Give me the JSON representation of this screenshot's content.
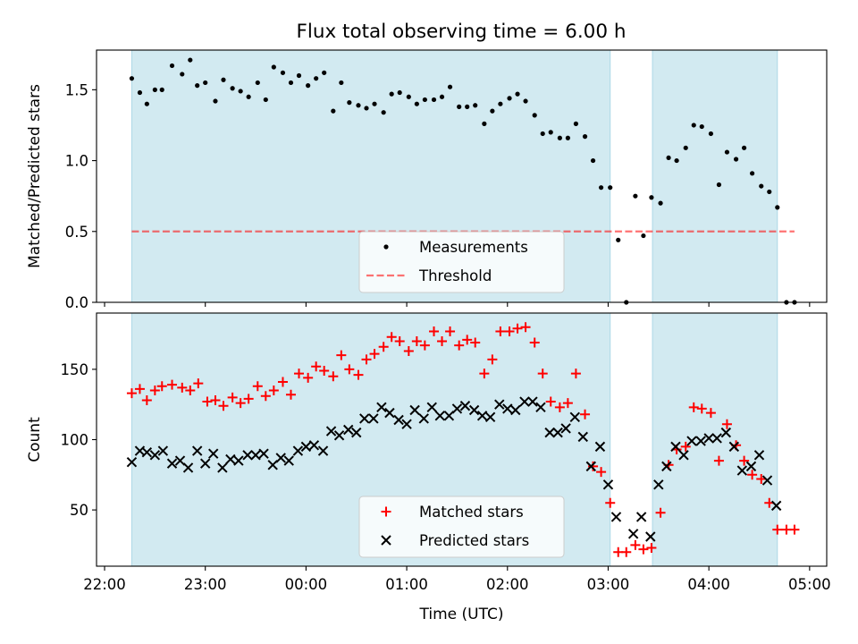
{
  "title": "Flux total observing time = 6.00 h",
  "colors": {
    "observing_span": "#add8e6",
    "measurements": "#000000",
    "threshold": "#ff0000",
    "matched": "#ff0000",
    "predicted": "#000000"
  },
  "chart_data": [
    {
      "type": "scatter",
      "panel": "top",
      "ylabel": "Matched/Predicted stars",
      "xlabel": "",
      "x_unit": "hours since 22:00 UTC",
      "xlim": [
        -0.08,
        7.17
      ],
      "ylim": [
        0.0,
        1.78
      ],
      "yticks": [
        0.0,
        0.5,
        1.0,
        1.5
      ],
      "ytick_labels": [
        "0.0",
        "0.5",
        "1.0",
        "1.5"
      ],
      "observing_spans": [
        [
          0.27,
          5.02
        ],
        [
          5.44,
          6.68
        ]
      ],
      "legend_position": "lower center",
      "series": [
        {
          "name": "Measurements",
          "points": [
            [
              0.27,
              1.58
            ],
            [
              0.35,
              1.48
            ],
            [
              0.42,
              1.4
            ],
            [
              0.5,
              1.5
            ],
            [
              0.57,
              1.5
            ],
            [
              0.67,
              1.67
            ],
            [
              0.77,
              1.61
            ],
            [
              0.85,
              1.71
            ],
            [
              0.92,
              1.53
            ],
            [
              1.0,
              1.55
            ],
            [
              1.1,
              1.42
            ],
            [
              1.18,
              1.57
            ],
            [
              1.27,
              1.51
            ],
            [
              1.35,
              1.49
            ],
            [
              1.43,
              1.45
            ],
            [
              1.52,
              1.55
            ],
            [
              1.6,
              1.43
            ],
            [
              1.68,
              1.66
            ],
            [
              1.77,
              1.62
            ],
            [
              1.85,
              1.55
            ],
            [
              1.93,
              1.6
            ],
            [
              2.02,
              1.53
            ],
            [
              2.1,
              1.58
            ],
            [
              2.18,
              1.62
            ],
            [
              2.27,
              1.35
            ],
            [
              2.35,
              1.55
            ],
            [
              2.43,
              1.41
            ],
            [
              2.52,
              1.39
            ],
            [
              2.6,
              1.37
            ],
            [
              2.68,
              1.4
            ],
            [
              2.77,
              1.34
            ],
            [
              2.85,
              1.47
            ],
            [
              2.93,
              1.48
            ],
            [
              3.02,
              1.45
            ],
            [
              3.1,
              1.4
            ],
            [
              3.18,
              1.43
            ],
            [
              3.27,
              1.43
            ],
            [
              3.35,
              1.45
            ],
            [
              3.43,
              1.52
            ],
            [
              3.52,
              1.38
            ],
            [
              3.6,
              1.38
            ],
            [
              3.68,
              1.39
            ],
            [
              3.77,
              1.26
            ],
            [
              3.85,
              1.35
            ],
            [
              3.93,
              1.4
            ],
            [
              4.02,
              1.44
            ],
            [
              4.1,
              1.47
            ],
            [
              4.18,
              1.42
            ],
            [
              4.27,
              1.32
            ],
            [
              4.35,
              1.19
            ],
            [
              4.43,
              1.2
            ],
            [
              4.52,
              1.16
            ],
            [
              4.6,
              1.16
            ],
            [
              4.68,
              1.26
            ],
            [
              4.77,
              1.17
            ],
            [
              4.85,
              1.0
            ],
            [
              4.93,
              0.81
            ],
            [
              5.02,
              0.81
            ],
            [
              5.1,
              0.44
            ],
            [
              5.18,
              0.0
            ],
            [
              5.27,
              0.75
            ],
            [
              5.35,
              0.47
            ],
            [
              5.43,
              0.74
            ],
            [
              5.52,
              0.7
            ],
            [
              5.6,
              1.02
            ],
            [
              5.68,
              1.0
            ],
            [
              5.77,
              1.09
            ],
            [
              5.85,
              1.25
            ],
            [
              5.93,
              1.24
            ],
            [
              6.02,
              1.19
            ],
            [
              6.1,
              0.83
            ],
            [
              6.18,
              1.06
            ],
            [
              6.27,
              1.01
            ],
            [
              6.35,
              1.09
            ],
            [
              6.43,
              0.91
            ],
            [
              6.52,
              0.82
            ],
            [
              6.6,
              0.78
            ],
            [
              6.68,
              0.67
            ],
            [
              6.77,
              0.0
            ],
            [
              6.85,
              0.0
            ]
          ]
        },
        {
          "name": "Threshold",
          "line": [
            [
              0.27,
              0.5
            ],
            [
              6.85,
              0.5
            ]
          ]
        }
      ]
    },
    {
      "type": "scatter",
      "panel": "bottom",
      "ylabel": "Count",
      "xlabel": "Time (UTC)",
      "x_unit": "hours since 22:00 UTC",
      "xlim": [
        -0.08,
        7.17
      ],
      "ylim": [
        10,
        190
      ],
      "yticks": [
        50,
        100,
        150
      ],
      "ytick_labels": [
        "50",
        "100",
        "150"
      ],
      "xticks": [
        0,
        1,
        2,
        3,
        4,
        5,
        6,
        7
      ],
      "xtick_labels": [
        "22:00",
        "23:00",
        "00:00",
        "01:00",
        "02:00",
        "03:00",
        "04:00",
        "05:00"
      ],
      "observing_spans": [
        [
          0.27,
          5.02
        ],
        [
          5.44,
          6.68
        ]
      ],
      "legend_position": "lower center",
      "series": [
        {
          "name": "Matched stars",
          "points": [
            [
              0.27,
              133
            ],
            [
              0.35,
              136
            ],
            [
              0.42,
              128
            ],
            [
              0.5,
              135
            ],
            [
              0.57,
              138
            ],
            [
              0.67,
              139
            ],
            [
              0.77,
              137
            ],
            [
              0.85,
              135
            ],
            [
              0.93,
              140
            ],
            [
              1.02,
              127
            ],
            [
              1.1,
              128
            ],
            [
              1.18,
              124
            ],
            [
              1.27,
              130
            ],
            [
              1.35,
              126
            ],
            [
              1.43,
              129
            ],
            [
              1.52,
              138
            ],
            [
              1.6,
              131
            ],
            [
              1.68,
              135
            ],
            [
              1.77,
              141
            ],
            [
              1.85,
              132
            ],
            [
              1.93,
              147
            ],
            [
              2.02,
              144
            ],
            [
              2.1,
              152
            ],
            [
              2.18,
              149
            ],
            [
              2.27,
              145
            ],
            [
              2.35,
              160
            ],
            [
              2.43,
              150
            ],
            [
              2.52,
              146
            ],
            [
              2.6,
              157
            ],
            [
              2.68,
              161
            ],
            [
              2.77,
              166
            ],
            [
              2.85,
              173
            ],
            [
              2.93,
              170
            ],
            [
              3.02,
              163
            ],
            [
              3.1,
              170
            ],
            [
              3.18,
              167
            ],
            [
              3.27,
              177
            ],
            [
              3.35,
              170
            ],
            [
              3.43,
              177
            ],
            [
              3.52,
              167
            ],
            [
              3.6,
              171
            ],
            [
              3.68,
              169
            ],
            [
              3.77,
              147
            ],
            [
              3.85,
              157
            ],
            [
              3.93,
              177
            ],
            [
              4.02,
              177
            ],
            [
              4.1,
              179
            ],
            [
              4.18,
              180
            ],
            [
              4.27,
              169
            ],
            [
              4.35,
              147
            ],
            [
              4.43,
              127
            ],
            [
              4.52,
              123
            ],
            [
              4.6,
              126
            ],
            [
              4.68,
              147
            ],
            [
              4.77,
              118
            ],
            [
              4.85,
              81
            ],
            [
              4.93,
              77
            ],
            [
              5.02,
              55
            ],
            [
              5.1,
              20
            ],
            [
              5.18,
              20
            ],
            [
              5.27,
              25
            ],
            [
              5.35,
              22
            ],
            [
              5.43,
              23
            ],
            [
              5.52,
              48
            ],
            [
              5.6,
              82
            ],
            [
              5.68,
              93
            ],
            [
              5.77,
              95
            ],
            [
              5.85,
              123
            ],
            [
              5.93,
              122
            ],
            [
              6.02,
              119
            ],
            [
              6.1,
              85
            ],
            [
              6.18,
              111
            ],
            [
              6.27,
              96
            ],
            [
              6.35,
              85
            ],
            [
              6.43,
              75
            ],
            [
              6.52,
              72
            ],
            [
              6.6,
              55
            ],
            [
              6.68,
              36
            ],
            [
              6.77,
              36
            ],
            [
              6.85,
              36
            ]
          ]
        },
        {
          "name": "Predicted stars",
          "points": [
            [
              0.27,
              84
            ],
            [
              0.35,
              92
            ],
            [
              0.42,
              91
            ],
            [
              0.5,
              89
            ],
            [
              0.58,
              92
            ],
            [
              0.67,
              83
            ],
            [
              0.75,
              85
            ],
            [
              0.83,
              80
            ],
            [
              0.92,
              92
            ],
            [
              1.0,
              83
            ],
            [
              1.08,
              90
            ],
            [
              1.17,
              80
            ],
            [
              1.25,
              86
            ],
            [
              1.33,
              85
            ],
            [
              1.42,
              89
            ],
            [
              1.5,
              89
            ],
            [
              1.58,
              90
            ],
            [
              1.67,
              82
            ],
            [
              1.75,
              87
            ],
            [
              1.83,
              85
            ],
            [
              1.92,
              92
            ],
            [
              2.0,
              95
            ],
            [
              2.08,
              96
            ],
            [
              2.17,
              92
            ],
            [
              2.25,
              106
            ],
            [
              2.33,
              103
            ],
            [
              2.42,
              107
            ],
            [
              2.5,
              105
            ],
            [
              2.58,
              115
            ],
            [
              2.67,
              115
            ],
            [
              2.75,
              123
            ],
            [
              2.83,
              119
            ],
            [
              2.92,
              114
            ],
            [
              3.0,
              111
            ],
            [
              3.08,
              121
            ],
            [
              3.17,
              115
            ],
            [
              3.25,
              123
            ],
            [
              3.33,
              117
            ],
            [
              3.42,
              117
            ],
            [
              3.5,
              122
            ],
            [
              3.58,
              124
            ],
            [
              3.67,
              121
            ],
            [
              3.75,
              117
            ],
            [
              3.83,
              116
            ],
            [
              3.92,
              125
            ],
            [
              4.0,
              122
            ],
            [
              4.08,
              121
            ],
            [
              4.17,
              127
            ],
            [
              4.25,
              127
            ],
            [
              4.33,
              123
            ],
            [
              4.42,
              105
            ],
            [
              4.5,
              105
            ],
            [
              4.58,
              108
            ],
            [
              4.67,
              116
            ],
            [
              4.75,
              102
            ],
            [
              4.83,
              81
            ],
            [
              4.92,
              95
            ],
            [
              5.0,
              68
            ],
            [
              5.08,
              45
            ],
            [
              5.25,
              33
            ],
            [
              5.33,
              45
            ],
            [
              5.42,
              31
            ],
            [
              5.5,
              68
            ],
            [
              5.58,
              81
            ],
            [
              5.67,
              95
            ],
            [
              5.75,
              89
            ],
            [
              5.83,
              99
            ],
            [
              5.92,
              99
            ],
            [
              6.0,
              101
            ],
            [
              6.08,
              101
            ],
            [
              6.17,
              105
            ],
            [
              6.25,
              95
            ],
            [
              6.33,
              78
            ],
            [
              6.42,
              81
            ],
            [
              6.5,
              89
            ],
            [
              6.58,
              71
            ],
            [
              6.67,
              53
            ]
          ]
        }
      ]
    }
  ]
}
